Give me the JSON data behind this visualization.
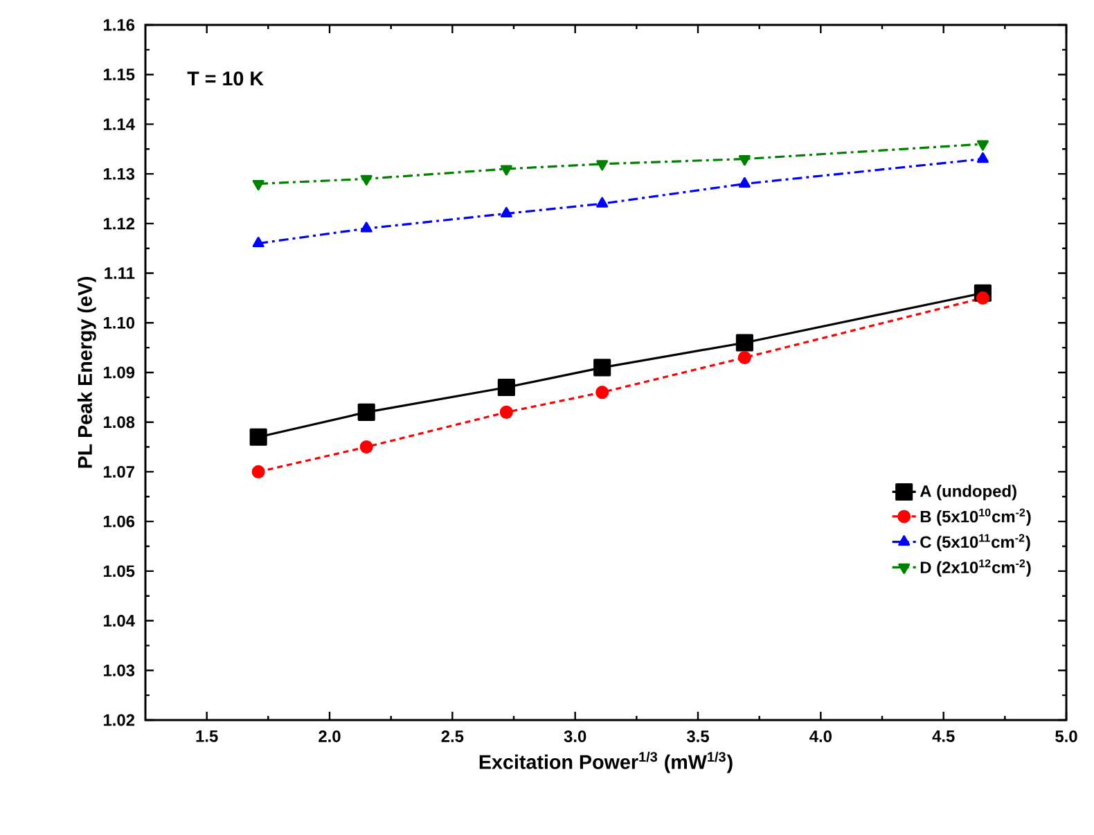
{
  "chart_data": {
    "type": "line",
    "xlabel": "Excitation Power$^{1/3}$ (mW$^{1/3}$)",
    "ylabel": "PL Peak Energy (eV)",
    "annotations": [
      "T = 10 K"
    ],
    "x": [
      1.71,
      2.15,
      2.72,
      3.11,
      3.69,
      4.66
    ],
    "series": [
      {
        "name": "A (undoped)",
        "color": "#000000",
        "marker": "square",
        "line_style": "solid",
        "values": [
          1.077,
          1.082,
          1.087,
          1.091,
          1.096,
          1.106
        ]
      },
      {
        "name": "B (5x10$^{10}$cm$^{-2}$)",
        "color": "#ff0000",
        "marker": "circle",
        "line_style": "dashed",
        "values": [
          1.07,
          1.075,
          1.082,
          1.086,
          1.093,
          1.105
        ]
      },
      {
        "name": "C (5x10$^{11}$cm$^{-2}$)",
        "color": "#0000ff",
        "marker": "triangle",
        "line_style": "dashdot",
        "values": [
          1.116,
          1.119,
          1.122,
          1.124,
          1.128,
          1.133
        ]
      },
      {
        "name": "D (2x10$^{12}$cm$^{-2}$)",
        "color": "#008000",
        "marker": "triangle-down",
        "line_style": "dashdot",
        "values": [
          1.128,
          1.129,
          1.131,
          1.132,
          1.133,
          1.136
        ]
      }
    ],
    "xlim": [
      1.25,
      5.0
    ],
    "xticks": [
      {
        "value": 1.5,
        "label": "1.5"
      },
      {
        "value": 2.0,
        "label": "2.0"
      },
      {
        "value": 2.5,
        "label": "2.5"
      },
      {
        "value": 3.0,
        "label": "3.0"
      },
      {
        "value": 3.5,
        "label": "3.5"
      },
      {
        "value": 4.0,
        "label": "4.0"
      },
      {
        "value": 4.5,
        "label": "4.5"
      },
      {
        "value": 5.0,
        "label": "5.0"
      }
    ],
    "ylim": [
      1.02,
      1.16
    ],
    "yticks": [
      {
        "value": 1.02,
        "label": "1.02"
      },
      {
        "value": 1.03,
        "label": "1.03"
      },
      {
        "value": 1.04,
        "label": "1.04"
      },
      {
        "value": 1.05,
        "label": "1.05"
      },
      {
        "value": 1.06,
        "label": "1.06"
      },
      {
        "value": 1.07,
        "label": "1.07"
      },
      {
        "value": 1.08,
        "label": "1.08"
      },
      {
        "value": 1.09,
        "label": "1.09"
      },
      {
        "value": 1.1,
        "label": "1.10"
      },
      {
        "value": 1.11,
        "label": "1.11"
      },
      {
        "value": 1.12,
        "label": "1.12"
      },
      {
        "value": 1.13,
        "label": "1.13"
      },
      {
        "value": 1.14,
        "label": "1.14"
      },
      {
        "value": 1.15,
        "label": "1.15"
      },
      {
        "value": 1.16,
        "label": "1.16"
      }
    ],
    "grid": false,
    "legend": "bottom right"
  }
}
